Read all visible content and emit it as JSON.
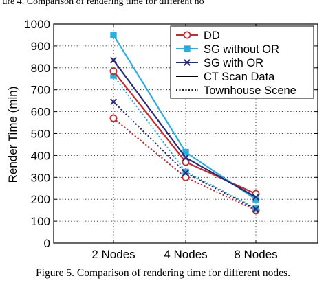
{
  "header_fragment": "ure 4. Comparison of rendering time for different no",
  "caption": "Figure 5.    Comparison of rendering time for different nodes.",
  "colors": {
    "DD": "#cc2a2a",
    "SG without OR": "#29aee0",
    "SG with OR": "#2a2a78"
  },
  "chart_data": {
    "type": "line",
    "categories": [
      "2 Nodes",
      "4 Nodes",
      "8 Nodes"
    ],
    "ylabel": "Render Time (min)",
    "xlabel": "",
    "ylim": [
      0,
      1000
    ],
    "yticks": [
      0,
      100,
      200,
      300,
      400,
      500,
      600,
      700,
      800,
      900,
      1000
    ],
    "grid": true,
    "legend_position": "top-right",
    "legend": [
      {
        "label": "DD",
        "marker": "circle",
        "color": "#cc2a2a"
      },
      {
        "label": "SG without OR",
        "marker": "square",
        "color": "#29aee0"
      },
      {
        "label": "SG with OR",
        "marker": "x",
        "color": "#2a2a78"
      },
      {
        "label": "CT Scan Data",
        "line": "solid",
        "color": "#000000"
      },
      {
        "label": "Townhouse Scene",
        "line": "dotted",
        "color": "#000000"
      }
    ],
    "series": [
      {
        "method": "DD",
        "dataset": "CT Scan Data",
        "style": "solid",
        "marker": "circle",
        "values": [
          785,
          370,
          225
        ]
      },
      {
        "method": "SG without OR",
        "dataset": "CT Scan Data",
        "style": "solid",
        "marker": "square",
        "values": [
          950,
          415,
          200
        ]
      },
      {
        "method": "SG with OR",
        "dataset": "CT Scan Data",
        "style": "solid",
        "marker": "x",
        "values": [
          835,
          390,
          210
        ]
      },
      {
        "method": "DD",
        "dataset": "Townhouse Scene",
        "style": "dotted",
        "marker": "circle",
        "values": [
          570,
          300,
          150
        ]
      },
      {
        "method": "SG without OR",
        "dataset": "Townhouse Scene",
        "style": "dotted",
        "marker": "square",
        "values": [
          765,
          325,
          160
        ]
      },
      {
        "method": "SG with OR",
        "dataset": "Townhouse Scene",
        "style": "dotted",
        "marker": "x",
        "values": [
          645,
          320,
          155
        ]
      }
    ]
  }
}
